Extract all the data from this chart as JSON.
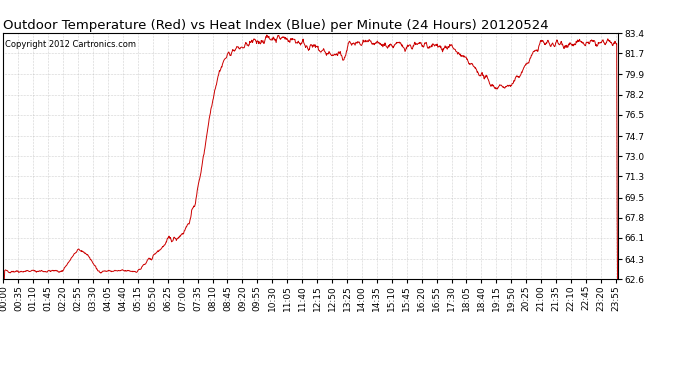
{
  "title": "Outdoor Temperature (Red) vs Heat Index (Blue) per Minute (24 Hours) 20120524",
  "copyright": "Copyright 2012 Cartronics.com",
  "yticks": [
    62.6,
    64.3,
    66.1,
    67.8,
    69.5,
    71.3,
    73.0,
    74.7,
    76.5,
    78.2,
    79.9,
    81.7,
    83.4
  ],
  "ymin": 62.6,
  "ymax": 83.4,
  "line_color": "#cc0000",
  "bg_color": "#ffffff",
  "grid_color": "#aaaaaa",
  "title_fontsize": 9.5,
  "tick_fontsize": 6.5,
  "copyright_fontsize": 6.0
}
